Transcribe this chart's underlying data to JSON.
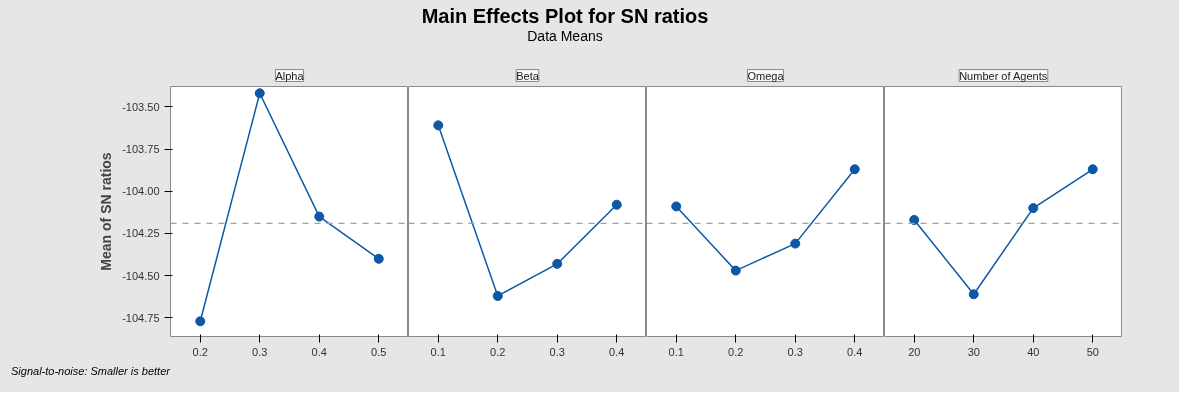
{
  "chart_data": [
    {
      "type": "other",
      "title": "Main Effects Plot for SN ratios",
      "subtitle": "Data Means"
    },
    {
      "type": "line",
      "ylabel": "Mean of SN ratios",
      "xlabel": "Alpha",
      "annotations": [
        "Signal-to-noise: Smaller is better"
      ],
      "x": [
        0.2,
        0.3,
        0.4,
        0.5
      ],
      "series": [
        {
          "color": "#0d58a6",
          "values": [
            -104.77,
            -103.42,
            -104.15,
            -104.4
          ]
        }
      ],
      "xlim": [
        0.15,
        0.55
      ],
      "xticks": [
        0.2,
        0.3,
        0.4,
        0.5
      ],
      "ylim": [
        -104.86,
        -103.38
      ],
      "yticks": [
        {
          "value": -104.75,
          "label": "-104.75"
        },
        {
          "value": -104.5,
          "label": "-104.50"
        },
        {
          "value": -104.25,
          "label": "-104.25"
        },
        {
          "value": -104,
          "label": "-104.00"
        },
        {
          "value": -103.75,
          "label": "-103.75"
        },
        {
          "value": -103.5,
          "label": "-103.50"
        }
      ],
      "ref_lines": [
        {
          "axis": "y",
          "value": -104.19,
          "color": "#a0a0a0",
          "line_style": "dashed"
        }
      ],
      "marker": "circle",
      "line_style": "solid",
      "grid": false
    },
    {
      "type": "line",
      "xlabel": "Beta",
      "x": [
        0.1,
        0.2,
        0.3,
        0.4
      ],
      "series": [
        {
          "color": "#0d58a6",
          "values": [
            -103.61,
            -104.62,
            -104.43,
            -104.08
          ]
        }
      ],
      "xlim": [
        0.05,
        0.45
      ],
      "xticks": [
        0.1,
        0.2,
        0.3,
        0.4
      ],
      "ylim": [
        -104.86,
        -103.38
      ],
      "tick_labels": "x",
      "ref_lines": [
        {
          "axis": "y",
          "value": -104.19,
          "color": "#a0a0a0",
          "line_style": "dashed"
        }
      ],
      "marker": "circle",
      "line_style": "solid",
      "grid": false
    },
    {
      "type": "line",
      "xlabel": "Omega",
      "x": [
        0.1,
        0.2,
        0.3,
        0.4
      ],
      "series": [
        {
          "color": "#0d58a6",
          "values": [
            -104.09,
            -104.47,
            -104.31,
            -103.87
          ]
        }
      ],
      "xlim": [
        0.05,
        0.45
      ],
      "xticks": [
        0.1,
        0.2,
        0.3,
        0.4
      ],
      "ylim": [
        -104.86,
        -103.38
      ],
      "tick_labels": "x",
      "ref_lines": [
        {
          "axis": "y",
          "value": -104.19,
          "color": "#a0a0a0",
          "line_style": "dashed"
        }
      ],
      "marker": "circle",
      "line_style": "solid",
      "grid": false
    },
    {
      "type": "line",
      "xlabel": "Number of Agents",
      "x": [
        20,
        30,
        40,
        50
      ],
      "series": [
        {
          "color": "#0d58a6",
          "values": [
            -104.17,
            -104.61,
            -104.1,
            -103.87
          ]
        }
      ],
      "xlim": [
        15,
        55
      ],
      "xticks": [
        20,
        30,
        40,
        50
      ],
      "ylim": [
        -104.86,
        -103.38
      ],
      "tick_labels": "x",
      "ref_lines": [
        {
          "axis": "y",
          "value": -104.19,
          "color": "#a0a0a0",
          "line_style": "dashed"
        }
      ],
      "marker": "circle",
      "line_style": "solid",
      "grid": false
    }
  ]
}
